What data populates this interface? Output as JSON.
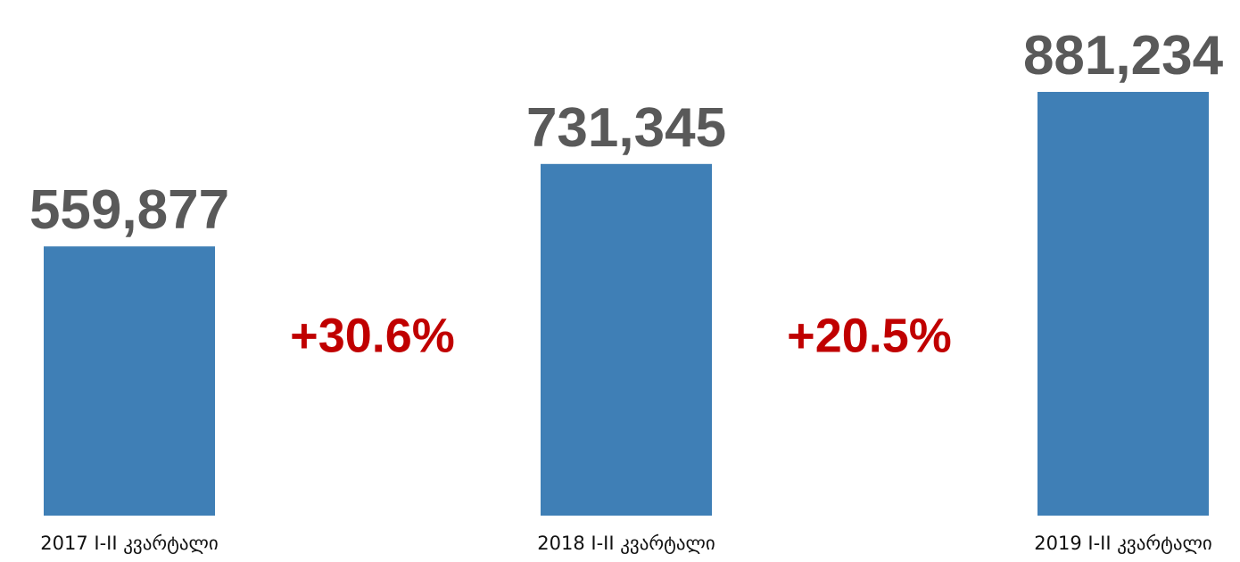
{
  "chart_data": {
    "type": "bar",
    "categories": [
      "2017 I-II კვარტალი",
      "2018 I-II კვარტალი",
      "2019 I-II კვარტალი"
    ],
    "values": [
      559877,
      731345,
      881234
    ],
    "value_labels": [
      "559,877",
      "731,345",
      "881,234"
    ],
    "color": "#3f7fb6",
    "ylim": [
      0,
      1000000
    ],
    "annotations": [
      "+30.6%",
      "+20.5%"
    ]
  }
}
